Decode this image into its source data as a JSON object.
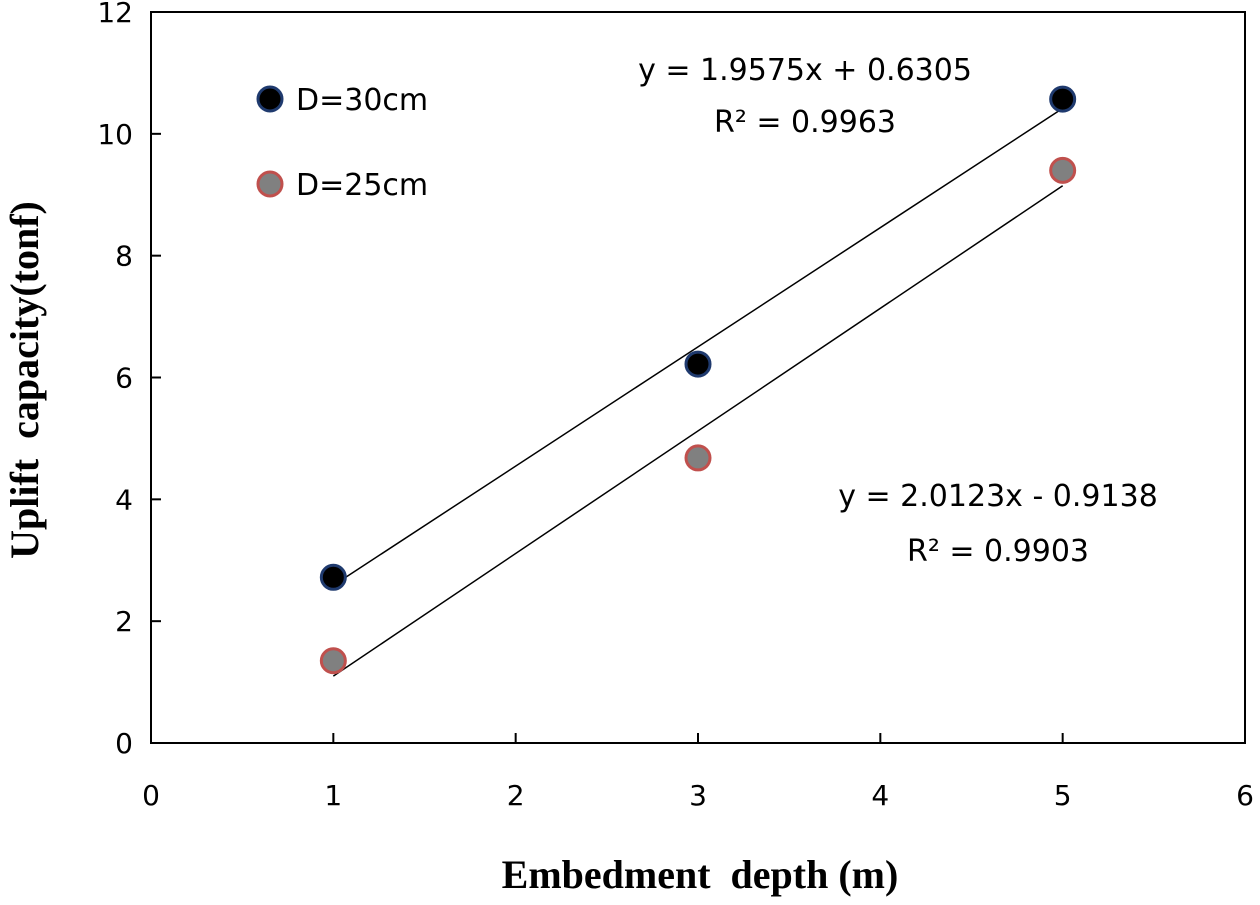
{
  "chart_data": {
    "type": "scatter",
    "title": "",
    "xlabel": "Embedment  depth (m)",
    "ylabel": "Uplift  capacity(tonf)",
    "xlim": [
      0,
      6
    ],
    "ylim": [
      0,
      12
    ],
    "x_ticks": [
      "0",
      "1",
      "2",
      "3",
      "4",
      "5",
      "6"
    ],
    "y_ticks": [
      "0",
      "2",
      "4",
      "6",
      "8",
      "10",
      "12"
    ],
    "grid": false,
    "legend_position": "top-left",
    "series": [
      {
        "name": "D=30cm",
        "color": "#000000",
        "edge_color": "#1f3a6e",
        "x": [
          1,
          3,
          5
        ],
        "y": [
          2.72,
          6.22,
          10.57
        ],
        "trendline": {
          "slope": 1.9575,
          "intercept": 0.6305
        },
        "equation": "y = 1.9575x + 0.6305",
        "r2": "R² = 0.9963"
      },
      {
        "name": "D=25cm",
        "color": "#808080",
        "edge_color": "#c0504d",
        "x": [
          1,
          3,
          5
        ],
        "y": [
          1.35,
          4.68,
          9.4
        ],
        "trendline": {
          "slope": 2.0123,
          "intercept": -0.9138
        },
        "equation": "y = 2.0123x - 0.9138",
        "r2": "R² = 0.9903"
      }
    ]
  }
}
